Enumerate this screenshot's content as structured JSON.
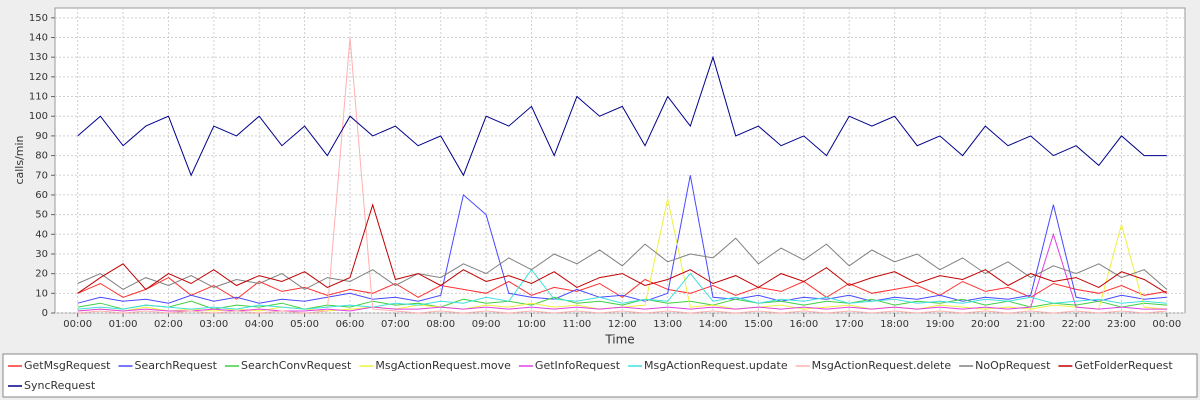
{
  "chart_data": {
    "type": "line",
    "x_label": "Time",
    "y_label": "calls/min",
    "x": [
      0,
      0.5,
      1,
      1.5,
      2,
      2.5,
      3,
      3.5,
      4,
      4.5,
      5,
      5.5,
      6,
      6.5,
      7,
      7.5,
      8,
      8.5,
      9,
      9.5,
      10,
      10.5,
      11,
      11.5,
      12,
      12.5,
      13,
      13.5,
      14,
      14.5,
      15,
      15.5,
      16,
      16.5,
      17,
      17.5,
      18,
      18.5,
      19,
      19.5,
      20,
      20.5,
      21,
      21.5,
      22,
      22.5,
      23,
      23.5,
      24
    ],
    "xlim": [
      -0.5,
      24.4
    ],
    "xticks": [
      {
        "value": 0,
        "label": "00:00"
      },
      {
        "value": 1,
        "label": "01:00"
      },
      {
        "value": 2,
        "label": "02:00"
      },
      {
        "value": 3,
        "label": "03:00"
      },
      {
        "value": 4,
        "label": "04:00"
      },
      {
        "value": 5,
        "label": "05:00"
      },
      {
        "value": 6,
        "label": "06:00"
      },
      {
        "value": 7,
        "label": "07:00"
      },
      {
        "value": 8,
        "label": "08:00"
      },
      {
        "value": 9,
        "label": "09:00"
      },
      {
        "value": 10,
        "label": "10:00"
      },
      {
        "value": 11,
        "label": "11:00"
      },
      {
        "value": 12,
        "label": "12:00"
      },
      {
        "value": 13,
        "label": "13:00"
      },
      {
        "value": 14,
        "label": "14:00"
      },
      {
        "value": 15,
        "label": "15:00"
      },
      {
        "value": 16,
        "label": "16:00"
      },
      {
        "value": 17,
        "label": "17:00"
      },
      {
        "value": 18,
        "label": "18:00"
      },
      {
        "value": 19,
        "label": "19:00"
      },
      {
        "value": 20,
        "label": "20:00"
      },
      {
        "value": 21,
        "label": "21:00"
      },
      {
        "value": 22,
        "label": "22:00"
      },
      {
        "value": 23,
        "label": "23:00"
      },
      {
        "value": 24,
        "label": "00:00"
      }
    ],
    "ylim": [
      0,
      155
    ],
    "yticks": [
      0,
      10,
      20,
      30,
      40,
      50,
      60,
      70,
      80,
      90,
      100,
      110,
      120,
      130,
      140,
      150
    ],
    "grid": true,
    "series": [
      {
        "name": "GetMsgRequest",
        "color": "#ff3030",
        "values": [
          10,
          15,
          8,
          12,
          18,
          9,
          14,
          7,
          16,
          11,
          13,
          9,
          12,
          10,
          15,
          8,
          14,
          12,
          10,
          16,
          9,
          13,
          11,
          15,
          8,
          17,
          12,
          10,
          14,
          9,
          13,
          11,
          16,
          8,
          15,
          10,
          12,
          14,
          9,
          16,
          11,
          13,
          8,
          15,
          12,
          10,
          14,
          9,
          11
        ]
      },
      {
        "name": "SearchRequest",
        "color": "#4848ff",
        "values": [
          5,
          8,
          6,
          7,
          5,
          9,
          6,
          8,
          5,
          7,
          6,
          8,
          10,
          7,
          8,
          6,
          9,
          60,
          50,
          10,
          8,
          7,
          12,
          8,
          9,
          6,
          10,
          70,
          8,
          7,
          9,
          6,
          8,
          7,
          9,
          6,
          8,
          7,
          9,
          6,
          8,
          7,
          9,
          55,
          8,
          6,
          9,
          7,
          8
        ]
      },
      {
        "name": "SearchConvRequest",
        "color": "#40d040",
        "values": [
          3,
          5,
          2,
          4,
          3,
          6,
          2,
          4,
          3,
          5,
          2,
          4,
          3,
          6,
          4,
          5,
          3,
          7,
          5,
          6,
          4,
          8,
          5,
          6,
          4,
          7,
          5,
          6,
          4,
          7,
          5,
          6,
          4,
          6,
          5,
          7,
          4,
          6,
          5,
          7,
          4,
          6,
          3,
          5,
          4,
          6,
          3,
          5,
          4
        ]
      },
      {
        "name": "MsgActionRequest.move",
        "color": "#f0f040",
        "values": [
          1,
          2,
          1,
          3,
          1,
          2,
          1,
          2,
          1,
          3,
          2,
          1,
          2,
          3,
          2,
          4,
          3,
          2,
          4,
          3,
          5,
          3,
          4,
          2,
          3,
          4,
          58,
          3,
          4,
          2,
          3,
          4,
          2,
          3,
          4,
          2,
          3,
          2,
          4,
          3,
          2,
          3,
          2,
          4,
          3,
          2,
          45,
          3,
          2
        ]
      },
      {
        "name": "GetInfoRequest",
        "color": "#e040e0",
        "values": [
          1,
          2,
          1,
          2,
          1,
          1,
          2,
          1,
          2,
          1,
          1,
          2,
          1,
          3,
          2,
          2,
          3,
          2,
          3,
          2,
          3,
          2,
          3,
          2,
          3,
          2,
          3,
          2,
          3,
          2,
          3,
          2,
          3,
          2,
          3,
          2,
          3,
          2,
          3,
          2,
          3,
          2,
          3,
          40,
          3,
          2,
          3,
          2,
          2
        ]
      },
      {
        "name": "MsgActionRequest.update",
        "color": "#40e0e0",
        "values": [
          2,
          3,
          2,
          4,
          3,
          2,
          3,
          2,
          4,
          3,
          2,
          3,
          4,
          3,
          5,
          4,
          6,
          5,
          8,
          6,
          22,
          7,
          6,
          8,
          5,
          7,
          6,
          20,
          6,
          8,
          5,
          7,
          6,
          8,
          5,
          6,
          7,
          5,
          6,
          5,
          7,
          6,
          8,
          5,
          6,
          7,
          5,
          6,
          5
        ]
      },
      {
        "name": "MsgActionRequest.delete",
        "color": "#ffb0b0",
        "values": [
          0,
          1,
          0,
          1,
          0,
          1,
          0,
          1,
          0,
          1,
          0,
          1,
          140,
          2,
          1,
          0,
          1,
          0,
          1,
          0,
          1,
          0,
          1,
          0,
          1,
          0,
          1,
          0,
          1,
          0,
          1,
          0,
          1,
          0,
          1,
          0,
          1,
          0,
          1,
          0,
          1,
          0,
          1,
          0,
          1,
          0,
          1,
          0,
          1
        ]
      },
      {
        "name": "NoOpRequest",
        "color": "#808080",
        "values": [
          15,
          20,
          12,
          18,
          14,
          19,
          13,
          17,
          15,
          20,
          12,
          18,
          16,
          22,
          14,
          20,
          18,
          25,
          20,
          28,
          22,
          30,
          25,
          32,
          24,
          35,
          26,
          30,
          28,
          38,
          25,
          33,
          27,
          35,
          24,
          32,
          26,
          30,
          22,
          28,
          20,
          26,
          18,
          24,
          20,
          25,
          18,
          22,
          12
        ]
      },
      {
        "name": "GetFolderRequest",
        "color": "#c00000",
        "values": [
          10,
          18,
          25,
          12,
          20,
          15,
          22,
          14,
          19,
          16,
          21,
          13,
          18,
          55,
          17,
          20,
          14,
          22,
          16,
          19,
          15,
          21,
          13,
          18,
          20,
          14,
          17,
          22,
          15,
          19,
          13,
          20,
          16,
          23,
          14,
          18,
          21,
          15,
          19,
          17,
          22,
          14,
          20,
          16,
          18,
          13,
          21,
          17,
          10
        ]
      },
      {
        "name": "SyncRequest",
        "color": "#00008c",
        "values": [
          90,
          100,
          85,
          95,
          100,
          70,
          95,
          90,
          100,
          85,
          95,
          80,
          100,
          90,
          95,
          85,
          90,
          70,
          100,
          95,
          105,
          80,
          110,
          100,
          105,
          85,
          110,
          95,
          130,
          90,
          95,
          85,
          90,
          80,
          100,
          95,
          100,
          85,
          90,
          80,
          95,
          85,
          90,
          80,
          85,
          75,
          90,
          80,
          80
        ]
      }
    ]
  }
}
